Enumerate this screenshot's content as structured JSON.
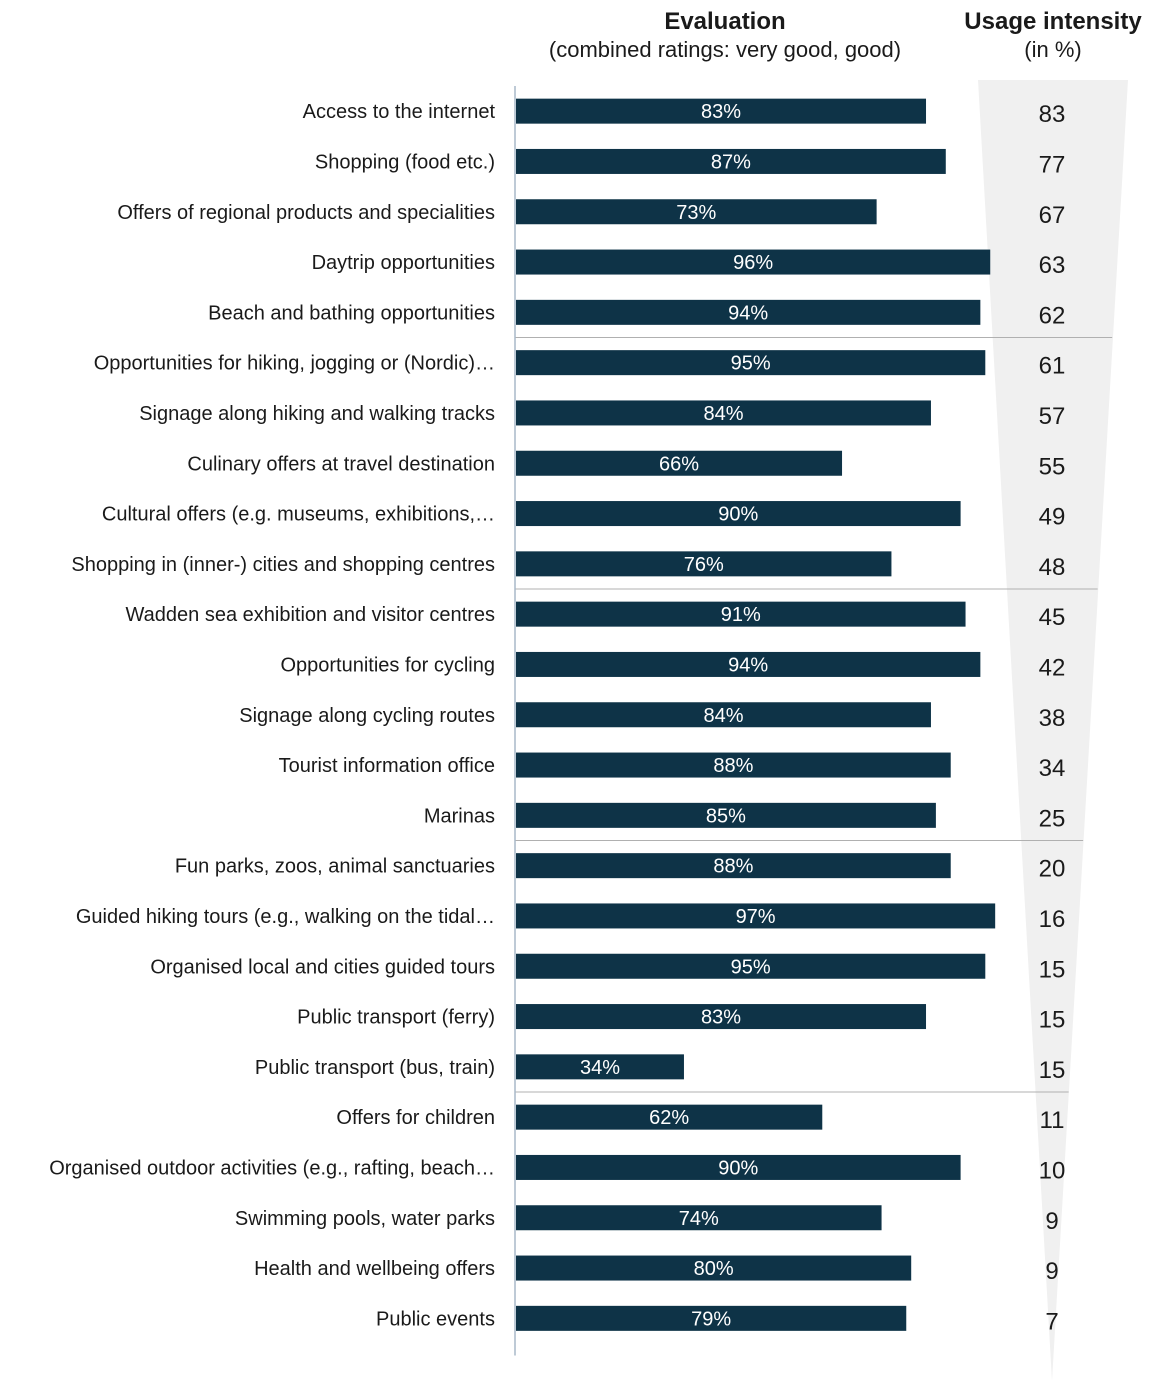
{
  "header": {
    "evaluation_title": "Evaluation",
    "evaluation_subtitle": "(combined ratings: very good, good)",
    "usage_title": "Usage intensity",
    "usage_subtitle": "(in %)"
  },
  "colors": {
    "bar": "#0e3347",
    "bar_label": "#ffffff",
    "wedge": "#f0f0f0",
    "axis": "#a8b8c8",
    "divider": "#b0b0b0",
    "text": "#1a1a1a"
  },
  "chart_data": {
    "type": "bar",
    "orientation": "horizontal",
    "xlim": [
      0,
      100
    ],
    "categories": [
      "Access to the internet",
      "Shopping (food etc.)",
      "Offers of regional products and specialities",
      "Daytrip opportunities",
      "Beach and bathing opportunities",
      "Opportunities for hiking, jogging or (Nordic)…",
      "Signage along hiking and walking tracks",
      "Culinary offers at travel destination",
      "Cultural offers (e.g. museums, exhibitions,…",
      "Shopping in (inner-) cities and shopping centres",
      "Wadden sea exhibition and visitor centres",
      "Opportunities for cycling",
      "Signage along cycling routes",
      "Tourist information office",
      "Marinas",
      "Fun parks, zoos, animal sanctuaries",
      "Guided hiking tours (e.g., walking on the tidal…",
      "Organised local and cities guided tours",
      "Public transport (ferry)",
      "Public transport (bus, train)",
      "Offers for children",
      "Organised outdoor activities (e.g., rafting, beach…",
      "Swimming pools, water parks",
      "Health and wellbeing offers",
      "Public events"
    ],
    "evaluation": [
      83,
      87,
      73,
      96,
      94,
      95,
      84,
      66,
      90,
      76,
      91,
      94,
      84,
      88,
      85,
      88,
      97,
      95,
      83,
      34,
      62,
      90,
      74,
      80,
      79
    ],
    "evaluation_labels": [
      "83%",
      "87%",
      "73%",
      "96%",
      "94%",
      "95%",
      "84%",
      "66%",
      "90%",
      "76%",
      "91%",
      "94%",
      "84%",
      "88%",
      "85%",
      "88%",
      "97%",
      "95%",
      "83%",
      "34%",
      "62%",
      "90%",
      "74%",
      "80%",
      "79%"
    ],
    "usage_intensity": [
      83,
      77,
      67,
      63,
      62,
      61,
      57,
      55,
      49,
      48,
      45,
      42,
      38,
      34,
      25,
      20,
      16,
      15,
      15,
      15,
      11,
      10,
      9,
      9,
      7
    ],
    "usage_labels": [
      "83",
      "77",
      "67",
      "63",
      "62",
      "61",
      "57",
      "55",
      "49",
      "48",
      "45",
      "42",
      "38",
      "34",
      "25",
      "20",
      "16",
      "15",
      "15",
      "15",
      "11",
      "10",
      "9",
      "9",
      "7"
    ],
    "group_dividers_after": [
      5,
      10,
      15,
      20
    ]
  }
}
